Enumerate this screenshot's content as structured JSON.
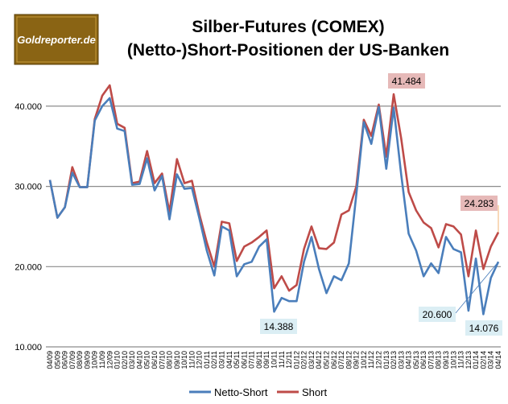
{
  "logo": {
    "text": "Goldreporter.de"
  },
  "chart_data": {
    "type": "line",
    "title": "Silber-Futures (COMEX)",
    "subtitle": "(Netto-)Short-Positionen der US-Banken",
    "xlabel": "",
    "ylabel": "",
    "ylim": [
      10000,
      45000
    ],
    "yticks": [
      10000,
      20000,
      30000,
      40000
    ],
    "ytick_labels": [
      "10.000",
      "20.000",
      "30.000",
      "40.000"
    ],
    "grid": true,
    "legend_position": "bottom",
    "categories": [
      "04/09",
      "05/09",
      "06/09",
      "07/09",
      "08/09",
      "09/09",
      "10/09",
      "11/09",
      "12/09",
      "01/10",
      "02/10",
      "03/10",
      "04/10",
      "05/10",
      "06/10",
      "07/10",
      "08/10",
      "09/10",
      "10/10",
      "11/10",
      "12/10",
      "01/11",
      "02/11",
      "03/11",
      "04/11",
      "05/11",
      "06/11",
      "07/11",
      "08/11",
      "09/11",
      "10/11",
      "11/11",
      "12/11",
      "01/12",
      "02/12",
      "03/12",
      "04/12",
      "05/12",
      "06/12",
      "07/12",
      "08/12",
      "09/12",
      "10/12",
      "11/12",
      "12/12",
      "01/13",
      "02/13",
      "03/13",
      "04/13",
      "05/13",
      "06/13",
      "07/13",
      "08/13",
      "09/13",
      "10/13",
      "11/13",
      "12/13",
      "01/14",
      "02/14",
      "03/14",
      "04/14"
    ],
    "series": [
      {
        "name": "Netto-Short",
        "color": "#4a7ebb",
        "values": [
          30800,
          26100,
          27400,
          31700,
          29900,
          29900,
          38200,
          40000,
          41000,
          37200,
          36900,
          30200,
          30300,
          33500,
          29500,
          31300,
          25900,
          31500,
          29700,
          29800,
          26000,
          22000,
          18900,
          25000,
          24500,
          18800,
          20300,
          20600,
          22500,
          23400,
          14388,
          16100,
          15700,
          15700,
          20600,
          23700,
          19700,
          16700,
          18800,
          18300,
          20400,
          29000,
          38000,
          35300,
          39900,
          32200,
          39800,
          31500,
          24100,
          22000,
          18800,
          20400,
          19200,
          23700,
          22200,
          21800,
          14500,
          21000,
          14076,
          18600,
          20600
        ]
      },
      {
        "name": "Short",
        "color": "#be4b48",
        "values": [
          30800,
          26100,
          27400,
          32400,
          29900,
          29900,
          38400,
          41300,
          42600,
          37800,
          37300,
          30400,
          30600,
          34400,
          30400,
          31600,
          26800,
          33400,
          30400,
          30700,
          26500,
          23000,
          20000,
          25600,
          25400,
          20700,
          22500,
          23000,
          23700,
          24500,
          17300,
          18800,
          17000,
          17700,
          22200,
          25000,
          22300,
          22200,
          23000,
          26500,
          27000,
          30000,
          38300,
          36300,
          40200,
          33700,
          41484,
          36000,
          29300,
          27000,
          25500,
          24800,
          22400,
          25300,
          25000,
          24000,
          18800,
          24500,
          19700,
          22500,
          24283
        ]
      }
    ],
    "annotations": [
      {
        "text": "41.484",
        "series": "Short",
        "category": "02/13",
        "bg": "#e6b9b8"
      },
      {
        "text": "24.283",
        "series": "Short",
        "category": "04/14",
        "bg": "#e6b9b8"
      },
      {
        "text": "14.388",
        "series": "Netto-Short",
        "category": "10/11",
        "bg": "#dbeef4"
      },
      {
        "text": "20.600",
        "series": "Netto-Short",
        "category": "04/14",
        "bg": "#dbeef4"
      },
      {
        "text": "14.076",
        "series": "Netto-Short",
        "category": "02/14",
        "bg": "#dbeef4"
      }
    ]
  }
}
